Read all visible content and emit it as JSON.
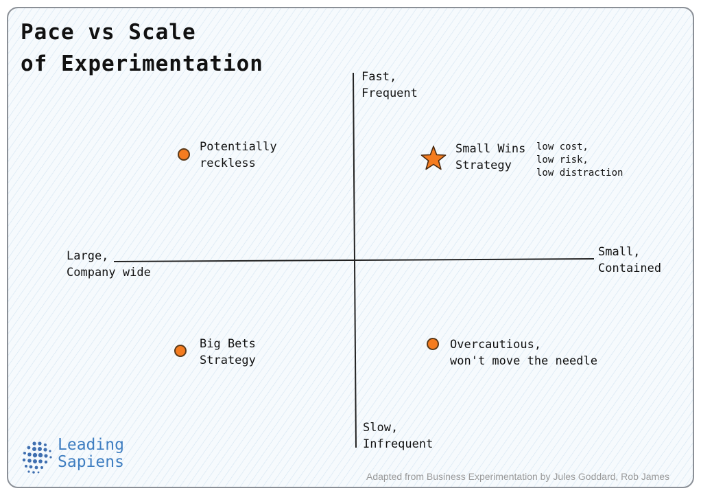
{
  "title": {
    "line1": "Pace vs Scale",
    "line2": "of Experimentation"
  },
  "axes": {
    "top": {
      "line1": "Fast,",
      "line2": "Frequent"
    },
    "bottom": {
      "line1": "Slow,",
      "line2": "Infrequent"
    },
    "left": {
      "line1": "Large,",
      "line2": "Company wide"
    },
    "right": {
      "line1": "Small,",
      "line2": "Contained"
    }
  },
  "quadrants": {
    "top_left": {
      "line1": "Potentially",
      "line2": "reckless",
      "marker": "dot"
    },
    "top_right": {
      "line1": "Small Wins",
      "line2": "Strategy",
      "marker": "star",
      "note": {
        "line1": "low cost,",
        "line2": "low risk,",
        "line3": "low distraction"
      }
    },
    "bottom_left": {
      "line1": "Big Bets",
      "line2": "Strategy",
      "marker": "dot"
    },
    "bottom_right": {
      "line1": "Overcautious,",
      "line2": "won't move the needle",
      "marker": "dot"
    }
  },
  "brand": {
    "line1": "Leading",
    "line2": "Sapiens",
    "color": "#3f7ec1",
    "icon": "dotted-circle-logo-icon"
  },
  "credit": "Adapted from Business Experimentation by Jules Goddard, Rob James",
  "colors": {
    "marker": "#f47c20",
    "axis": "#222222",
    "hatch": "#96bedc"
  }
}
